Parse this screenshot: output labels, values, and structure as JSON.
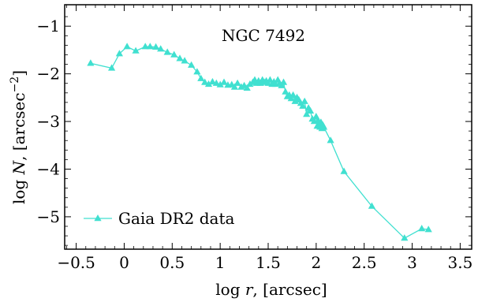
{
  "chart_data": {
    "type": "line",
    "title": "",
    "annotation": "NGC 7492",
    "xlabel": {
      "pre": "log ",
      "var": "r",
      "post": ", [arcsec]"
    },
    "ylabel": {
      "pre": "log ",
      "var": "N",
      "post": ", [arcsec",
      "sup": "−2",
      "close": "]"
    },
    "xlim": [
      -0.62,
      3.62
    ],
    "ylim": [
      -5.68,
      -0.55
    ],
    "x_major_ticks": [
      -0.5,
      0,
      0.5,
      1,
      1.5,
      2,
      2.5,
      3,
      3.5
    ],
    "x_tick_labels": [
      "−0.5",
      "0",
      "0.5",
      "1",
      "1.5",
      "2",
      "2.5",
      "3",
      "3.5"
    ],
    "y_major_ticks": [
      -1,
      -2,
      -3,
      -4,
      -5
    ],
    "y_tick_labels": [
      "−1",
      "−2",
      "−3",
      "−4",
      "−5"
    ],
    "grid": false,
    "legend_position": "bottom-left",
    "series": [
      {
        "name": "Gaia DR2 data",
        "color": "#40e0d0",
        "marker": "triangle",
        "x": [
          -0.35,
          -0.13,
          -0.05,
          0.03,
          0.12,
          0.22,
          0.27,
          0.33,
          0.38,
          0.45,
          0.52,
          0.58,
          0.63,
          0.7,
          0.76,
          0.8,
          0.84,
          0.88,
          0.92,
          0.96,
          1.0,
          1.04,
          1.08,
          1.12,
          1.15,
          1.18,
          1.22,
          1.25,
          1.28,
          1.31,
          1.34,
          1.36,
          1.38,
          1.4,
          1.42,
          1.44,
          1.46,
          1.48,
          1.5,
          1.52,
          1.54,
          1.56,
          1.58,
          1.6,
          1.62,
          1.64,
          1.66,
          1.68,
          1.7,
          1.72,
          1.74,
          1.76,
          1.78,
          1.8,
          1.82,
          1.84,
          1.86,
          1.88,
          1.9,
          1.92,
          1.94,
          1.96,
          1.98,
          2.0,
          2.01,
          2.02,
          2.03,
          2.04,
          2.05,
          2.06,
          2.07,
          2.08,
          2.15,
          2.29,
          2.58,
          2.92,
          3.1,
          3.17
        ],
        "y": [
          -1.78,
          -1.88,
          -1.58,
          -1.43,
          -1.52,
          -1.43,
          -1.43,
          -1.44,
          -1.48,
          -1.55,
          -1.6,
          -1.68,
          -1.73,
          -1.82,
          -1.96,
          -2.1,
          -2.18,
          -2.22,
          -2.17,
          -2.2,
          -2.23,
          -2.18,
          -2.24,
          -2.23,
          -2.28,
          -2.2,
          -2.28,
          -2.25,
          -2.3,
          -2.22,
          -2.18,
          -2.13,
          -2.2,
          -2.15,
          -2.2,
          -2.13,
          -2.18,
          -2.15,
          -2.2,
          -2.13,
          -2.22,
          -2.17,
          -2.22,
          -2.13,
          -2.2,
          -2.25,
          -2.18,
          -2.38,
          -2.48,
          -2.45,
          -2.52,
          -2.45,
          -2.58,
          -2.5,
          -2.55,
          -2.62,
          -2.68,
          -2.58,
          -2.85,
          -2.72,
          -2.78,
          -2.95,
          -3.0,
          -2.9,
          -3.1,
          -2.98,
          -3.05,
          -3.12,
          -3.02,
          -3.15,
          -3.08,
          -3.12,
          -3.4,
          -4.05,
          -4.78,
          -5.45,
          -5.25,
          -5.27
        ]
      }
    ]
  }
}
